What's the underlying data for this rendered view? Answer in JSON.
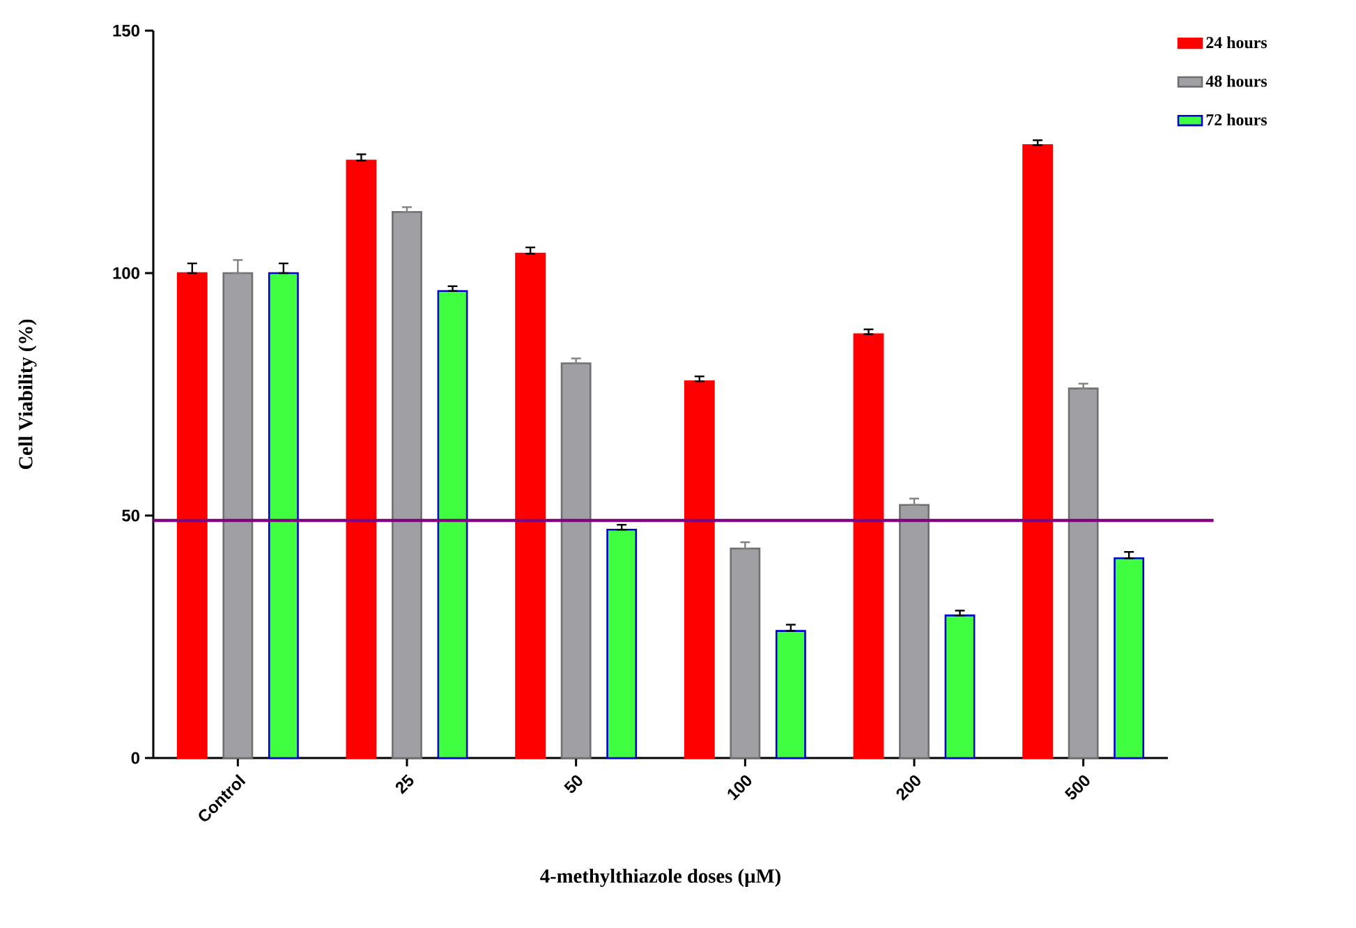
{
  "chart_data": {
    "type": "bar",
    "xlabel": "4-methylthiazole doses (µM)",
    "ylabel": "Cell Viability (%)",
    "categories": [
      "Control",
      "25",
      "50",
      "100",
      "200",
      "500"
    ],
    "series": [
      {
        "name": "24 hours",
        "color": "#ff0000",
        "values": [
          100,
          123.2,
          104,
          77.7,
          87.4,
          126.4
        ],
        "errors": [
          [
            100,
            102
          ],
          [
            123.2,
            124.5
          ],
          [
            104,
            105.3
          ],
          [
            77.7,
            78.7
          ],
          [
            87.4,
            88.4
          ],
          [
            126.4,
            127.4
          ]
        ]
      },
      {
        "name": "48 hours",
        "color": "#a0a0a4",
        "values": [
          100,
          112.6,
          81.4,
          43.2,
          52.2,
          76.2
        ],
        "errors": [
          [
            100,
            102.7
          ],
          [
            112.6,
            113.6
          ],
          [
            81.4,
            82.4
          ],
          [
            43.2,
            44.5
          ],
          [
            52.2,
            53.5
          ],
          [
            76.2,
            77.2
          ]
        ]
      },
      {
        "name": "72 hours",
        "color": "#40ff40",
        "values": [
          100,
          96.3,
          47.1,
          26.2,
          29.4,
          41.2
        ],
        "errors": [
          [
            100,
            102
          ],
          [
            96.3,
            97.3
          ],
          [
            47.1,
            48.1
          ],
          [
            26.2,
            27.5
          ],
          [
            29.4,
            30.4
          ],
          [
            41.2,
            42.5
          ]
        ]
      }
    ],
    "ylim": [
      0,
      150
    ],
    "yticks": [
      0,
      50,
      100,
      150
    ],
    "ref_lines": [
      {
        "axis": "y",
        "value": 49,
        "color": "#800080"
      }
    ],
    "grid": false,
    "legend": "top right"
  }
}
